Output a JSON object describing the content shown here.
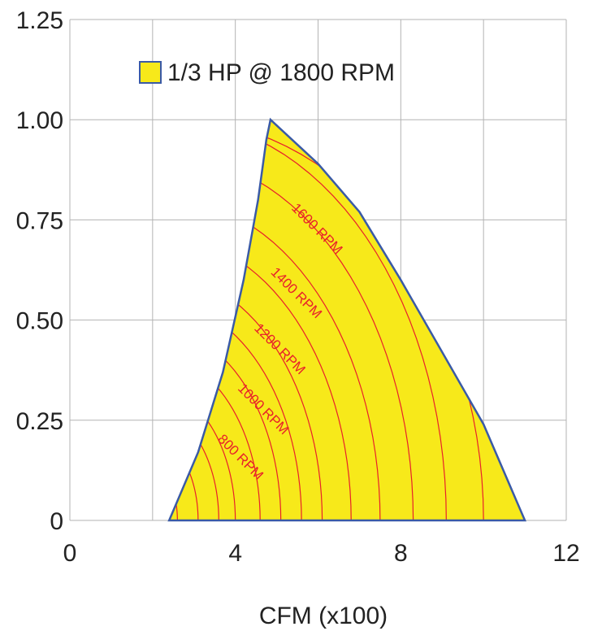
{
  "chart_data": {
    "type": "area",
    "title": "",
    "xlabel": "CFM (x100)",
    "ylabel": "",
    "xlim": [
      0,
      12
    ],
    "ylim": [
      0,
      1.25
    ],
    "x_ticks": [
      "0",
      "4",
      "8",
      "12"
    ],
    "y_ticks": [
      "0",
      "0.25",
      "0.50",
      "0.75",
      "1.00",
      "1.25"
    ],
    "grid": true,
    "legend_position": "top-center",
    "series": [
      {
        "name": "1/3 HP @ 1800 RPM",
        "fill_color": "#f7e91a",
        "edge_color": "#3a5aa6",
        "boundary": [
          {
            "x": 2.4,
            "y": 0.0
          },
          {
            "x": 3.1,
            "y": 0.17
          },
          {
            "x": 3.7,
            "y": 0.37
          },
          {
            "x": 4.2,
            "y": 0.6
          },
          {
            "x": 4.55,
            "y": 0.8
          },
          {
            "x": 4.75,
            "y": 0.95
          },
          {
            "x": 4.85,
            "y": 1.0
          },
          {
            "x": 6.0,
            "y": 0.89
          },
          {
            "x": 7.0,
            "y": 0.77
          },
          {
            "x": 8.0,
            "y": 0.6
          },
          {
            "x": 9.0,
            "y": 0.42
          },
          {
            "x": 10.0,
            "y": 0.24
          },
          {
            "x": 11.0,
            "y": 0.0
          }
        ]
      }
    ],
    "speed_curve_color": "#e8202a",
    "speed_curves_x_at_zero": [
      2.6,
      3.1,
      3.6,
      4.0,
      4.6,
      5.1,
      5.6,
      6.1,
      6.8,
      7.5,
      8.3,
      9.1,
      10.0
    ],
    "annotations": [
      {
        "text": "1600 RPM",
        "x": 5.9,
        "y": 0.72,
        "angle_deg": 45
      },
      {
        "text": "1400 RPM",
        "x": 5.4,
        "y": 0.56,
        "angle_deg": 45
      },
      {
        "text": "1200 RPM",
        "x": 5.0,
        "y": 0.42,
        "angle_deg": 45
      },
      {
        "text": "1000 RPM",
        "x": 4.6,
        "y": 0.27,
        "angle_deg": 45
      },
      {
        "text": "800 RPM",
        "x": 4.05,
        "y": 0.15,
        "angle_deg": 45
      }
    ],
    "legend_swatch_color": "#f7e91a",
    "grid_color": "#b3b3b3",
    "axis_text_color": "#222222"
  }
}
